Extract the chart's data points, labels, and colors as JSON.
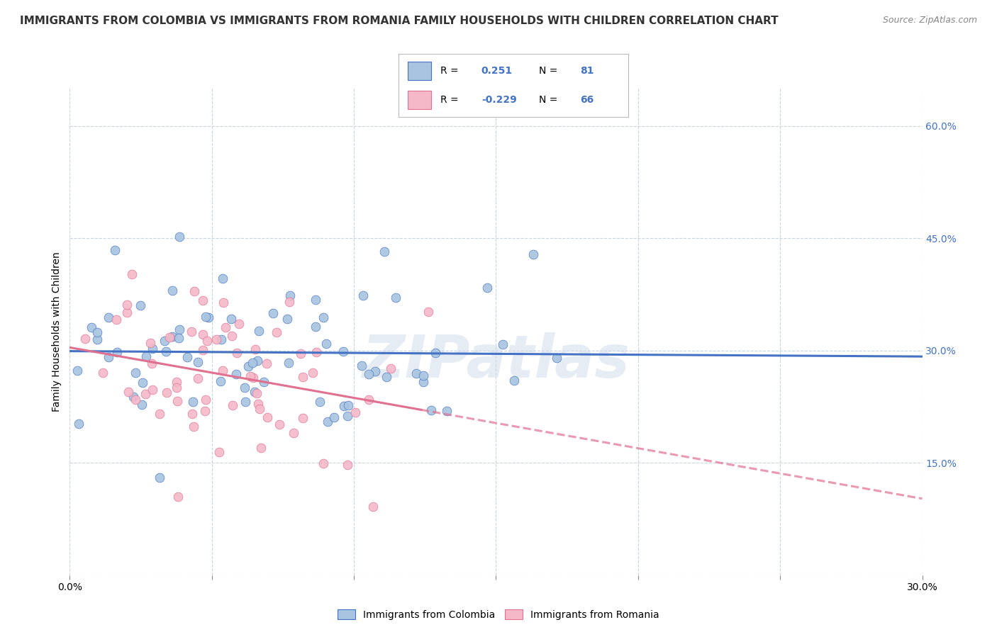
{
  "title": "IMMIGRANTS FROM COLOMBIA VS IMMIGRANTS FROM ROMANIA FAMILY HOUSEHOLDS WITH CHILDREN CORRELATION CHART",
  "source": "Source: ZipAtlas.com",
  "ylabel_label": "Family Households with Children",
  "xlim": [
    0.0,
    0.3
  ],
  "ylim": [
    0.0,
    0.65
  ],
  "colombia_scatter_color": "#a8c4e0",
  "romania_scatter_color": "#f4b8c8",
  "colombia_line_color": "#4472c4",
  "romania_line_color": "#e07090",
  "R_colombia": 0.251,
  "N_colombia": 81,
  "R_romania": -0.229,
  "N_romania": 66,
  "watermark": "ZIPatlas",
  "legend_items": [
    "Immigrants from Colombia",
    "Immigrants from Romania"
  ],
  "title_fontsize": 11.0,
  "source_fontsize": 9.0,
  "label_fontsize": 10,
  "tick_fontsize": 10,
  "legend_fontsize": 10,
  "background_color": "#ffffff",
  "grid_color": "#c8d4e0",
  "right_tick_color": "#4472c4",
  "ytick_vals": [
    0.0,
    0.15,
    0.3,
    0.45,
    0.6
  ],
  "xtick_vals": [
    0.0,
    0.05,
    0.1,
    0.15,
    0.2,
    0.25,
    0.3
  ]
}
